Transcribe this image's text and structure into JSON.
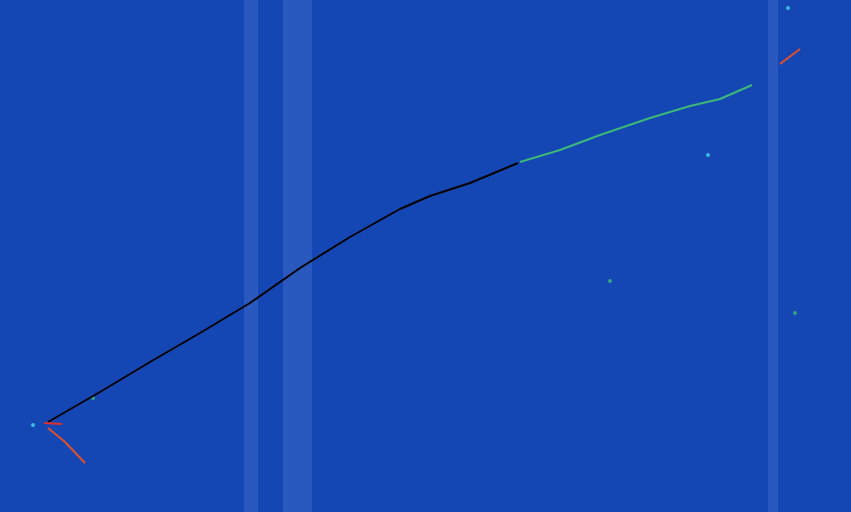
{
  "chart_data": {
    "type": "line",
    "xlim": [
      0,
      851
    ],
    "ylim": [
      0,
      512
    ],
    "tick_labels": false,
    "grid": false,
    "bands": [
      [
        244,
        258
      ],
      [
        283,
        312
      ],
      [
        768,
        778
      ]
    ],
    "series": [
      {
        "type": "line",
        "color": "#000000",
        "values": [
          [
            48,
            422
          ],
          [
            100,
            392
          ],
          [
            150,
            362
          ],
          [
            200,
            333
          ],
          [
            250,
            303
          ],
          [
            300,
            268
          ],
          [
            350,
            237
          ],
          [
            400,
            209
          ],
          [
            430,
            196
          ],
          [
            470,
            183
          ],
          [
            518,
            163
          ]
        ]
      },
      {
        "type": "line",
        "color": "#3cb878",
        "values": [
          [
            520,
            162
          ],
          [
            560,
            150
          ],
          [
            600,
            135
          ],
          [
            650,
            118
          ],
          [
            690,
            106
          ],
          [
            720,
            99
          ],
          [
            752,
            85
          ]
        ]
      },
      {
        "type": "line",
        "color": "#e0502a",
        "values": [
          [
            48,
            428
          ],
          [
            65,
            442
          ],
          [
            85,
            463
          ]
        ]
      },
      {
        "type": "line",
        "color": "#e0302a",
        "values": [
          [
            44,
            423
          ],
          [
            62,
            424
          ]
        ]
      },
      {
        "type": "line",
        "color": "#e0502a",
        "values": [
          [
            780,
            64
          ],
          [
            800,
            49
          ]
        ]
      },
      {
        "type": "scatter",
        "color": "#40d8e8",
        "values": [
          [
            33,
            425
          ],
          [
            788,
            8
          ],
          [
            708,
            155
          ]
        ]
      },
      {
        "type": "scatter",
        "color": "#3cb878",
        "values": [
          [
            610,
            281
          ],
          [
            93,
            398
          ],
          [
            795,
            313
          ]
        ]
      }
    ]
  }
}
